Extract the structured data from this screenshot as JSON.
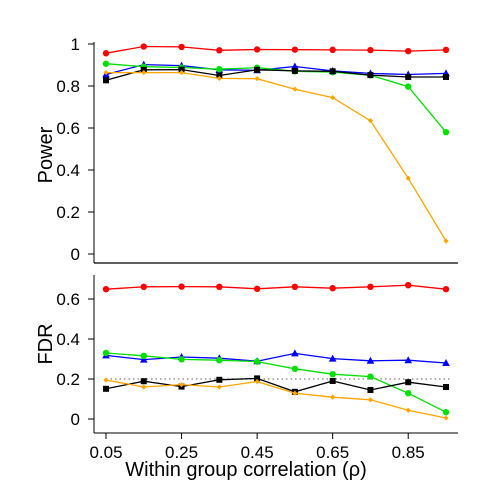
{
  "chart_data": [
    {
      "type": "line",
      "title": "",
      "xlabel": "",
      "ylabel": "Power",
      "x": [
        0.05,
        0.15,
        0.25,
        0.35,
        0.45,
        0.55,
        0.65,
        0.75,
        0.85,
        0.95
      ],
      "xlim": [
        0.05,
        0.95
      ],
      "ylim": [
        0,
        1
      ],
      "yticks": [
        "0",
        "0.2",
        "0.4",
        "0.6",
        "0.8",
        "1"
      ],
      "yticks_values": [
        0,
        0.2,
        0.4,
        0.6,
        0.8,
        1
      ],
      "grid": false,
      "series": [
        {
          "color": "#ff0000",
          "marker": "circle",
          "values": [
            0.956,
            0.988,
            0.986,
            0.97,
            0.974,
            0.973,
            0.972,
            0.971,
            0.966,
            0.972
          ]
        },
        {
          "color": "#0000ff",
          "marker": "triangle",
          "values": [
            0.855,
            0.902,
            0.897,
            0.877,
            0.875,
            0.893,
            0.872,
            0.86,
            0.855,
            0.86
          ]
        },
        {
          "color": "#00e000",
          "marker": "circle",
          "values": [
            0.906,
            0.892,
            0.888,
            0.88,
            0.887,
            0.87,
            0.866,
            0.851,
            0.797,
            0.58
          ]
        },
        {
          "color": "#000000",
          "marker": "square",
          "values": [
            0.827,
            0.877,
            0.878,
            0.85,
            0.877,
            0.872,
            0.87,
            0.852,
            0.843,
            0.843
          ]
        },
        {
          "color": "#ffa500",
          "marker": "diamond",
          "values": [
            0.864,
            0.864,
            0.864,
            0.836,
            0.835,
            0.785,
            0.745,
            0.635,
            0.361,
            0.062
          ]
        }
      ]
    },
    {
      "type": "line",
      "title": "",
      "xlabel": "Within group correlation (ρ)",
      "ylabel": "FDR",
      "x": [
        0.05,
        0.15,
        0.25,
        0.35,
        0.45,
        0.55,
        0.65,
        0.75,
        0.85,
        0.95
      ],
      "xlim": [
        0.05,
        0.95
      ],
      "ylim": [
        0,
        0.7
      ],
      "yticks": [
        "0",
        "0.2",
        "0.4",
        "0.6"
      ],
      "yticks_values": [
        0,
        0.2,
        0.4,
        0.6
      ],
      "xticks": [
        "0.05",
        "0.25",
        "0.45",
        "0.65",
        "0.85"
      ],
      "xticks_values": [
        0.05,
        0.25,
        0.45,
        0.65,
        0.85
      ],
      "reference_line": {
        "y": 0.2,
        "style": "dotted",
        "color": "#808080"
      },
      "grid": false,
      "series": [
        {
          "color": "#ff0000",
          "marker": "circle",
          "values": [
            0.649,
            0.661,
            0.662,
            0.661,
            0.651,
            0.661,
            0.654,
            0.661,
            0.669,
            0.649
          ]
        },
        {
          "color": "#0000ff",
          "marker": "triangle",
          "values": [
            0.318,
            0.297,
            0.31,
            0.304,
            0.289,
            0.328,
            0.302,
            0.291,
            0.294,
            0.28
          ]
        },
        {
          "color": "#00e000",
          "marker": "circle",
          "values": [
            0.33,
            0.316,
            0.298,
            0.294,
            0.287,
            0.251,
            0.224,
            0.212,
            0.129,
            0.034
          ]
        },
        {
          "color": "#000000",
          "marker": "square",
          "values": [
            0.151,
            0.189,
            0.162,
            0.196,
            0.203,
            0.136,
            0.19,
            0.145,
            0.184,
            0.16
          ]
        },
        {
          "color": "#ffa500",
          "marker": "diamond",
          "values": [
            0.195,
            0.16,
            0.172,
            0.16,
            0.187,
            0.129,
            0.109,
            0.096,
            0.044,
            0.005
          ]
        }
      ]
    }
  ]
}
